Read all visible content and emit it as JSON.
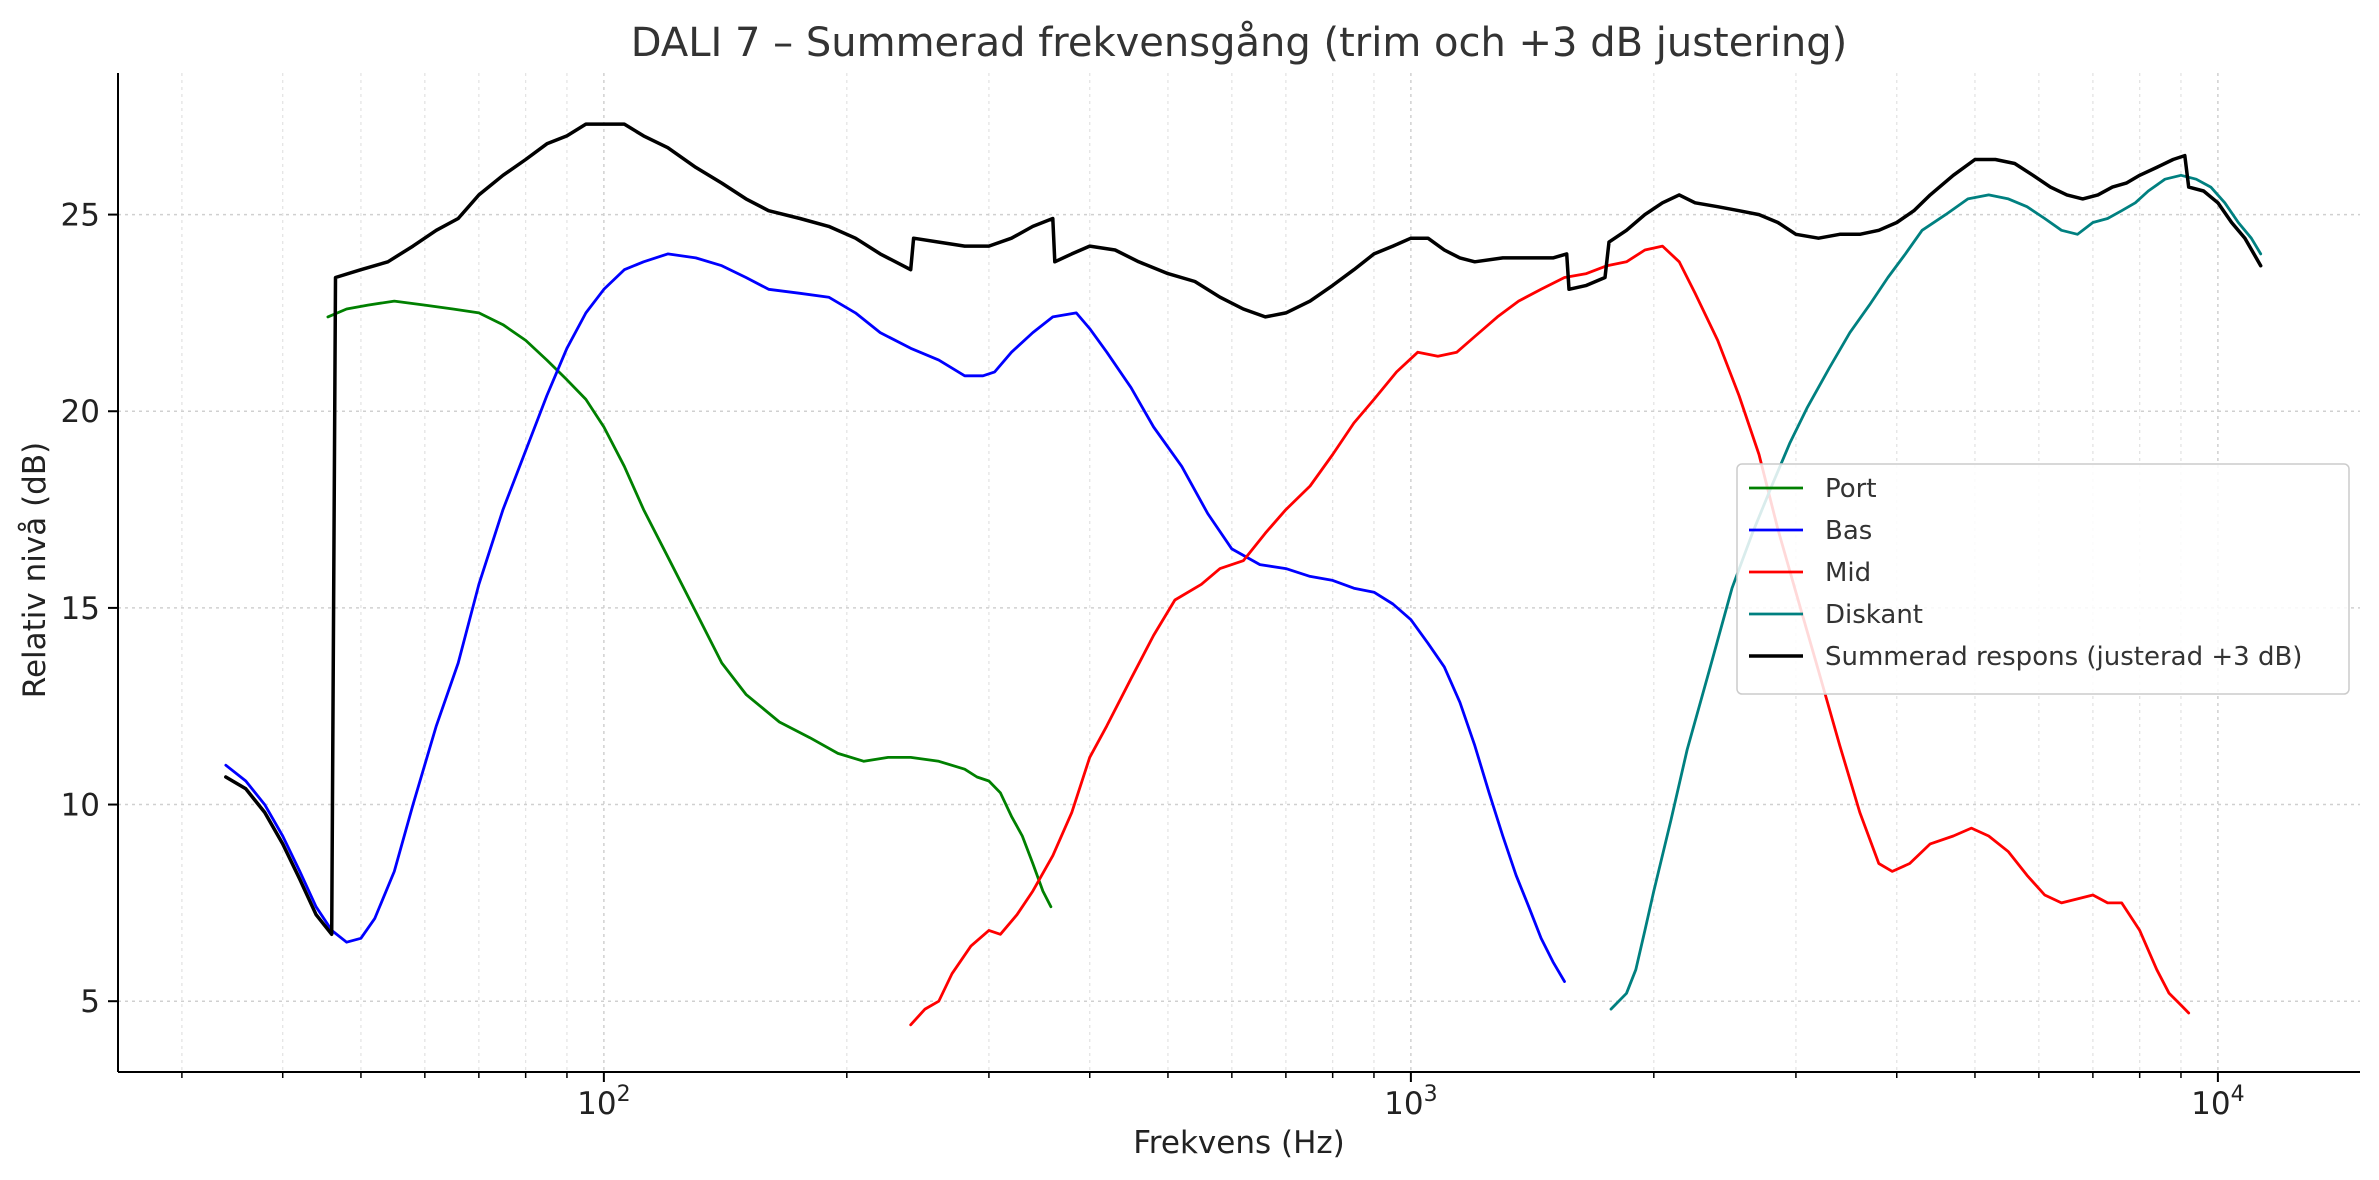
{
  "chart_data": {
    "type": "line",
    "title": "DALI 7 – Summerad frekvensgång (trim och +3 dB justering)",
    "xlabel": "Frekvens (Hz)",
    "ylabel": "Relativ nivå (dB)",
    "x_scale": "log",
    "xlim": [
      25,
      15000
    ],
    "ylim": [
      3.2,
      28.6
    ],
    "x_ticks": [
      {
        "value": 100,
        "base": "10",
        "exp": "2"
      },
      {
        "value": 1000,
        "base": "10",
        "exp": "3"
      },
      {
        "value": 10000,
        "base": "10",
        "exp": "4"
      }
    ],
    "y_ticks": [
      5,
      10,
      15,
      20,
      25
    ],
    "grid": true,
    "legend": "center-right",
    "series": [
      {
        "name": "Port",
        "color": "#008000",
        "points": [
          [
            45.5,
            22.4
          ],
          [
            48,
            22.6
          ],
          [
            51,
            22.7
          ],
          [
            55,
            22.8
          ],
          [
            60,
            22.7
          ],
          [
            65,
            22.6
          ],
          [
            70,
            22.5
          ],
          [
            75,
            22.2
          ],
          [
            80,
            21.8
          ],
          [
            85,
            21.3
          ],
          [
            90,
            20.8
          ],
          [
            95,
            20.3
          ],
          [
            100,
            19.6
          ],
          [
            106,
            18.6
          ],
          [
            112,
            17.5
          ],
          [
            120,
            16.3
          ],
          [
            130,
            14.9
          ],
          [
            140,
            13.6
          ],
          [
            150,
            12.8
          ],
          [
            165,
            12.1
          ],
          [
            180,
            11.7
          ],
          [
            195,
            11.3
          ],
          [
            210,
            11.1
          ],
          [
            225,
            11.2
          ],
          [
            240,
            11.2
          ],
          [
            260,
            11.1
          ],
          [
            280,
            10.9
          ],
          [
            290,
            10.7
          ],
          [
            300,
            10.6
          ],
          [
            310,
            10.3
          ],
          [
            320,
            9.7
          ],
          [
            330,
            9.2
          ],
          [
            340,
            8.5
          ],
          [
            350,
            7.8
          ],
          [
            358,
            7.4
          ]
        ]
      },
      {
        "name": "Bas",
        "color": "#0000ff",
        "points": [
          [
            34,
            11.0
          ],
          [
            36,
            10.6
          ],
          [
            38,
            10.0
          ],
          [
            40,
            9.2
          ],
          [
            42,
            8.3
          ],
          [
            44,
            7.4
          ],
          [
            46,
            6.8
          ],
          [
            48,
            6.5
          ],
          [
            50,
            6.6
          ],
          [
            52,
            7.1
          ],
          [
            55,
            8.3
          ],
          [
            58,
            10.0
          ],
          [
            62,
            12.0
          ],
          [
            66,
            13.6
          ],
          [
            70,
            15.6
          ],
          [
            75,
            17.5
          ],
          [
            80,
            19.0
          ],
          [
            85,
            20.4
          ],
          [
            90,
            21.6
          ],
          [
            95,
            22.5
          ],
          [
            100,
            23.1
          ],
          [
            106,
            23.6
          ],
          [
            112,
            23.8
          ],
          [
            120,
            24.0
          ],
          [
            130,
            23.9
          ],
          [
            140,
            23.7
          ],
          [
            150,
            23.4
          ],
          [
            160,
            23.1
          ],
          [
            175,
            23.0
          ],
          [
            190,
            22.9
          ],
          [
            205,
            22.5
          ],
          [
            220,
            22.0
          ],
          [
            240,
            21.6
          ],
          [
            260,
            21.3
          ],
          [
            280,
            20.9
          ],
          [
            295,
            20.9
          ],
          [
            305,
            21.0
          ],
          [
            320,
            21.5
          ],
          [
            340,
            22.0
          ],
          [
            360,
            22.4
          ],
          [
            385,
            22.5
          ],
          [
            400,
            22.1
          ],
          [
            420,
            21.5
          ],
          [
            450,
            20.6
          ],
          [
            480,
            19.6
          ],
          [
            520,
            18.6
          ],
          [
            560,
            17.4
          ],
          [
            600,
            16.5
          ],
          [
            650,
            16.1
          ],
          [
            700,
            16.0
          ],
          [
            750,
            15.8
          ],
          [
            800,
            15.7
          ],
          [
            850,
            15.5
          ],
          [
            900,
            15.4
          ],
          [
            950,
            15.1
          ],
          [
            1000,
            14.7
          ],
          [
            1050,
            14.1
          ],
          [
            1100,
            13.5
          ],
          [
            1150,
            12.6
          ],
          [
            1200,
            11.5
          ],
          [
            1250,
            10.3
          ],
          [
            1300,
            9.2
          ],
          [
            1350,
            8.2
          ],
          [
            1400,
            7.4
          ],
          [
            1450,
            6.6
          ],
          [
            1500,
            6.0
          ],
          [
            1550,
            5.5
          ]
        ]
      },
      {
        "name": "Mid",
        "color": "#ff0000",
        "points": [
          [
            240,
            4.4
          ],
          [
            250,
            4.8
          ],
          [
            260,
            5.0
          ],
          [
            270,
            5.7
          ],
          [
            285,
            6.4
          ],
          [
            300,
            6.8
          ],
          [
            310,
            6.7
          ],
          [
            325,
            7.2
          ],
          [
            340,
            7.8
          ],
          [
            360,
            8.7
          ],
          [
            380,
            9.8
          ],
          [
            400,
            11.2
          ],
          [
            420,
            12.0
          ],
          [
            450,
            13.2
          ],
          [
            480,
            14.3
          ],
          [
            510,
            15.2
          ],
          [
            550,
            15.6
          ],
          [
            580,
            16.0
          ],
          [
            620,
            16.2
          ],
          [
            660,
            16.9
          ],
          [
            700,
            17.5
          ],
          [
            750,
            18.1
          ],
          [
            800,
            18.9
          ],
          [
            850,
            19.7
          ],
          [
            900,
            20.3
          ],
          [
            960,
            21.0
          ],
          [
            1020,
            21.5
          ],
          [
            1080,
            21.4
          ],
          [
            1140,
            21.5
          ],
          [
            1200,
            21.9
          ],
          [
            1280,
            22.4
          ],
          [
            1360,
            22.8
          ],
          [
            1450,
            23.1
          ],
          [
            1550,
            23.4
          ],
          [
            1650,
            23.5
          ],
          [
            1750,
            23.7
          ],
          [
            1850,
            23.8
          ],
          [
            1950,
            24.1
          ],
          [
            2050,
            24.2
          ],
          [
            2150,
            23.8
          ],
          [
            2250,
            23.0
          ],
          [
            2400,
            21.8
          ],
          [
            2550,
            20.4
          ],
          [
            2700,
            18.9
          ],
          [
            2850,
            17.0
          ],
          [
            3000,
            15.4
          ],
          [
            3200,
            13.4
          ],
          [
            3400,
            11.5
          ],
          [
            3600,
            9.8
          ],
          [
            3800,
            8.5
          ],
          [
            3950,
            8.3
          ],
          [
            4150,
            8.5
          ],
          [
            4400,
            9.0
          ],
          [
            4700,
            9.2
          ],
          [
            4950,
            9.4
          ],
          [
            5200,
            9.2
          ],
          [
            5500,
            8.8
          ],
          [
            5800,
            8.2
          ],
          [
            6100,
            7.7
          ],
          [
            6400,
            7.5
          ],
          [
            6700,
            7.6
          ],
          [
            7000,
            7.7
          ],
          [
            7300,
            7.5
          ],
          [
            7600,
            7.5
          ],
          [
            8000,
            6.8
          ],
          [
            8400,
            5.8
          ],
          [
            8700,
            5.2
          ],
          [
            9000,
            4.9
          ],
          [
            9200,
            4.7
          ]
        ]
      },
      {
        "name": "Diskant",
        "color": "#008080",
        "points": [
          [
            1770,
            4.8
          ],
          [
            1850,
            5.2
          ],
          [
            1900,
            5.8
          ],
          [
            1950,
            6.8
          ],
          [
            2000,
            7.8
          ],
          [
            2100,
            9.6
          ],
          [
            2200,
            11.4
          ],
          [
            2350,
            13.5
          ],
          [
            2500,
            15.5
          ],
          [
            2650,
            16.9
          ],
          [
            2800,
            18.1
          ],
          [
            2950,
            19.2
          ],
          [
            3100,
            20.1
          ],
          [
            3300,
            21.1
          ],
          [
            3500,
            22.0
          ],
          [
            3700,
            22.7
          ],
          [
            3900,
            23.4
          ],
          [
            4100,
            24.0
          ],
          [
            4300,
            24.6
          ],
          [
            4600,
            25.0
          ],
          [
            4900,
            25.4
          ],
          [
            5200,
            25.5
          ],
          [
            5500,
            25.4
          ],
          [
            5800,
            25.2
          ],
          [
            6100,
            24.9
          ],
          [
            6400,
            24.6
          ],
          [
            6700,
            24.5
          ],
          [
            7000,
            24.8
          ],
          [
            7300,
            24.9
          ],
          [
            7600,
            25.1
          ],
          [
            7900,
            25.3
          ],
          [
            8200,
            25.6
          ],
          [
            8600,
            25.9
          ],
          [
            9000,
            26.0
          ],
          [
            9400,
            25.9
          ],
          [
            9800,
            25.7
          ],
          [
            10200,
            25.3
          ],
          [
            10600,
            24.8
          ],
          [
            11000,
            24.4
          ],
          [
            11300,
            24.0
          ]
        ]
      },
      {
        "name": "Summerad respons (justerad +3 dB)",
        "color": "#000000",
        "width": 3.5,
        "points": [
          [
            34,
            10.7
          ],
          [
            36,
            10.4
          ],
          [
            38,
            9.8
          ],
          [
            40,
            9.0
          ],
          [
            42,
            8.1
          ],
          [
            44,
            7.2
          ],
          [
            46,
            6.7
          ],
          [
            46.5,
            23.4
          ],
          [
            50,
            23.6
          ],
          [
            54,
            23.8
          ],
          [
            58,
            24.2
          ],
          [
            62,
            24.6
          ],
          [
            66,
            24.9
          ],
          [
            70,
            25.5
          ],
          [
            75,
            26.0
          ],
          [
            80,
            26.4
          ],
          [
            85,
            26.8
          ],
          [
            90,
            27.0
          ],
          [
            95,
            27.3
          ],
          [
            100,
            27.3
          ],
          [
            106,
            27.3
          ],
          [
            112,
            27.0
          ],
          [
            120,
            26.7
          ],
          [
            130,
            26.2
          ],
          [
            140,
            25.8
          ],
          [
            150,
            25.4
          ],
          [
            160,
            25.1
          ],
          [
            175,
            24.9
          ],
          [
            190,
            24.7
          ],
          [
            205,
            24.4
          ],
          [
            220,
            24.0
          ],
          [
            240,
            23.6
          ],
          [
            242,
            24.4
          ],
          [
            260,
            24.3
          ],
          [
            280,
            24.2
          ],
          [
            300,
            24.2
          ],
          [
            320,
            24.4
          ],
          [
            340,
            24.7
          ],
          [
            360,
            24.9
          ],
          [
            362,
            23.8
          ],
          [
            380,
            24.0
          ],
          [
            400,
            24.2
          ],
          [
            430,
            24.1
          ],
          [
            460,
            23.8
          ],
          [
            500,
            23.5
          ],
          [
            540,
            23.3
          ],
          [
            580,
            22.9
          ],
          [
            620,
            22.6
          ],
          [
            660,
            22.4
          ],
          [
            700,
            22.5
          ],
          [
            750,
            22.8
          ],
          [
            800,
            23.2
          ],
          [
            850,
            23.6
          ],
          [
            900,
            24.0
          ],
          [
            950,
            24.2
          ],
          [
            1000,
            24.4
          ],
          [
            1050,
            24.4
          ],
          [
            1100,
            24.1
          ],
          [
            1150,
            23.9
          ],
          [
            1200,
            23.8
          ],
          [
            1300,
            23.9
          ],
          [
            1400,
            23.9
          ],
          [
            1500,
            23.9
          ],
          [
            1560,
            24.0
          ],
          [
            1570,
            23.1
          ],
          [
            1650,
            23.2
          ],
          [
            1740,
            23.4
          ],
          [
            1760,
            24.3
          ],
          [
            1850,
            24.6
          ],
          [
            1950,
            25.0
          ],
          [
            2050,
            25.3
          ],
          [
            2150,
            25.5
          ],
          [
            2250,
            25.3
          ],
          [
            2400,
            25.2
          ],
          [
            2550,
            25.1
          ],
          [
            2700,
            25.0
          ],
          [
            2850,
            24.8
          ],
          [
            3000,
            24.5
          ],
          [
            3200,
            24.4
          ],
          [
            3400,
            24.5
          ],
          [
            3600,
            24.5
          ],
          [
            3800,
            24.6
          ],
          [
            4000,
            24.8
          ],
          [
            4200,
            25.1
          ],
          [
            4400,
            25.5
          ],
          [
            4700,
            26.0
          ],
          [
            5000,
            26.4
          ],
          [
            5300,
            26.4
          ],
          [
            5600,
            26.3
          ],
          [
            5900,
            26.0
          ],
          [
            6200,
            25.7
          ],
          [
            6500,
            25.5
          ],
          [
            6800,
            25.4
          ],
          [
            7100,
            25.5
          ],
          [
            7400,
            25.7
          ],
          [
            7700,
            25.8
          ],
          [
            8000,
            26.0
          ],
          [
            8400,
            26.2
          ],
          [
            8800,
            26.4
          ],
          [
            9100,
            26.5
          ],
          [
            9200,
            25.7
          ],
          [
            9600,
            25.6
          ],
          [
            10000,
            25.3
          ],
          [
            10400,
            24.8
          ],
          [
            10800,
            24.4
          ],
          [
            11300,
            23.7
          ]
        ]
      }
    ]
  }
}
